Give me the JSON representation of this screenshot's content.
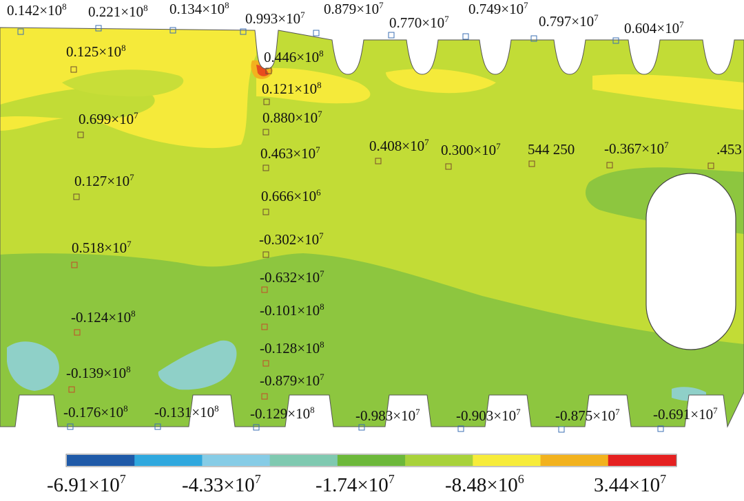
{
  "points": [
    {
      "base": "0.142",
      "exp": "8"
    },
    {
      "base": "0.221",
      "exp": "8"
    },
    {
      "base": "0.134",
      "exp": "8"
    },
    {
      "base": "0.993",
      "exp": "7"
    },
    {
      "base": "0.879",
      "exp": "7"
    },
    {
      "base": "0.770",
      "exp": "7"
    },
    {
      "base": "0.749",
      "exp": "7"
    },
    {
      "base": "0.797",
      "exp": "7"
    },
    {
      "base": "0.604",
      "exp": "7"
    },
    {
      "base": "0.125",
      "exp": "8"
    },
    {
      "base": "0.446",
      "exp": "8"
    },
    {
      "base": "0.121",
      "exp": "8"
    },
    {
      "base": "0.699",
      "exp": "7"
    },
    {
      "base": "0.880",
      "exp": "7"
    },
    {
      "base": "0.463",
      "exp": "7"
    },
    {
      "base": "0.408",
      "exp": "7"
    },
    {
      "base": "0.300",
      "exp": "7"
    },
    {
      "base": "544 250",
      "exp": ""
    },
    {
      "base": "-0.367",
      "exp": "7"
    },
    {
      "base": ".453",
      "exp": ""
    },
    {
      "base": "0.127",
      "exp": "7"
    },
    {
      "base": "0.666",
      "exp": "6"
    },
    {
      "base": "-0.302",
      "exp": "7"
    },
    {
      "base": "0.518",
      "exp": "7"
    },
    {
      "base": "-0.632",
      "exp": "7"
    },
    {
      "base": "-0.124",
      "exp": "8"
    },
    {
      "base": "-0.101",
      "exp": "8"
    },
    {
      "base": "-0.128",
      "exp": "8"
    },
    {
      "base": "-0.139",
      "exp": "8"
    },
    {
      "base": "-0.879",
      "exp": "7"
    },
    {
      "base": "-0.176",
      "exp": "8"
    },
    {
      "base": "-0.131",
      "exp": "8"
    },
    {
      "base": "-0.129",
      "exp": "8"
    },
    {
      "base": "-0.983",
      "exp": "7"
    },
    {
      "base": "-0.903",
      "exp": "7"
    },
    {
      "base": "-0.875",
      "exp": "7"
    },
    {
      "base": "-0.691",
      "exp": "7"
    }
  ],
  "legend": {
    "colors": [
      "#1f5aa8",
      "#2fa8de",
      "#86cce6",
      "#7fc9b0",
      "#6cb83a",
      "#a8d23a",
      "#f7ec3a",
      "#f2b21e",
      "#e52020"
    ],
    "ticks": [
      {
        "base": "-6.91",
        "exp": "7"
      },
      {
        "base": "-4.33",
        "exp": "7"
      },
      {
        "base": "-1.74",
        "exp": "7"
      },
      {
        "base": "-8.48",
        "exp": "6"
      },
      {
        "base": "3.44",
        "exp": "7"
      }
    ]
  },
  "field_colors": {
    "yellow": "#f5ea3a",
    "yellow_green": "#c2dc36",
    "green": "#8dc63f",
    "cyan": "#8fd0c8",
    "orange": "#f2b21e",
    "red": "#e84c1e"
  },
  "times_sign": "×"
}
